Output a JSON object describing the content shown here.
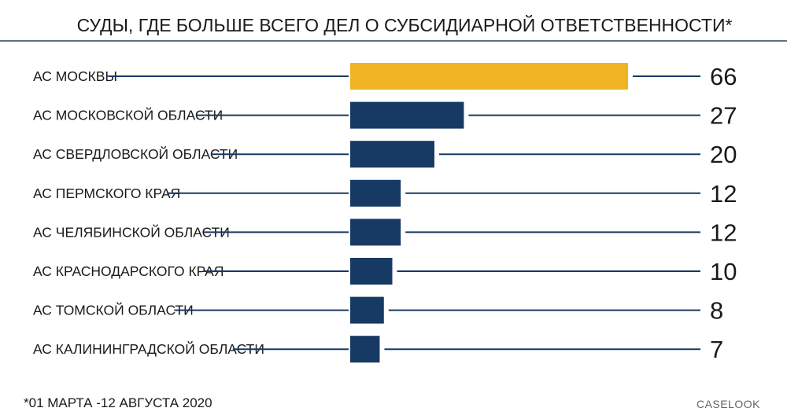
{
  "chart_data": {
    "type": "bar",
    "orientation": "horizontal",
    "title": "СУДЫ, ГДЕ БОЛЬШЕ ВСЕГО ДЕЛ О СУБСИДИАРНОЙ ОТВЕТСТВЕННОСТИ*",
    "categories": [
      "АС МОСКВЫ",
      "АС МОСКОВСКОЙ ОБЛАСТИ",
      "АС СВЕРДЛОВСКОЙ ОБЛАСТИ",
      "АС ПЕРМСКОГО КРАЯ",
      "АС ЧЕЛЯБИНСКОЙ ОБЛАСТИ",
      "АС КРАСНОДАРСКОГО КРАЯ",
      "АС ТОМСКОЙ ОБЛАСТИ",
      "АС КАЛИНИНГРАДСКОЙ ОБЛАСТИ"
    ],
    "values": [
      66,
      27,
      20,
      12,
      12,
      10,
      8,
      7
    ],
    "value_labels": [
      "66",
      "27",
      "20",
      "12",
      "12",
      "10",
      "8",
      "7"
    ],
    "xlim": [
      0,
      66
    ],
    "grid": false,
    "highlight_index": 0,
    "colors": {
      "highlight": "#F0B323",
      "bar": "#173A64",
      "line": "#173A64",
      "rule": "#2B3F63"
    },
    "footnote": "*01 МАРТА -12 АВГУСТА 2020",
    "source": "CASELOOK"
  }
}
